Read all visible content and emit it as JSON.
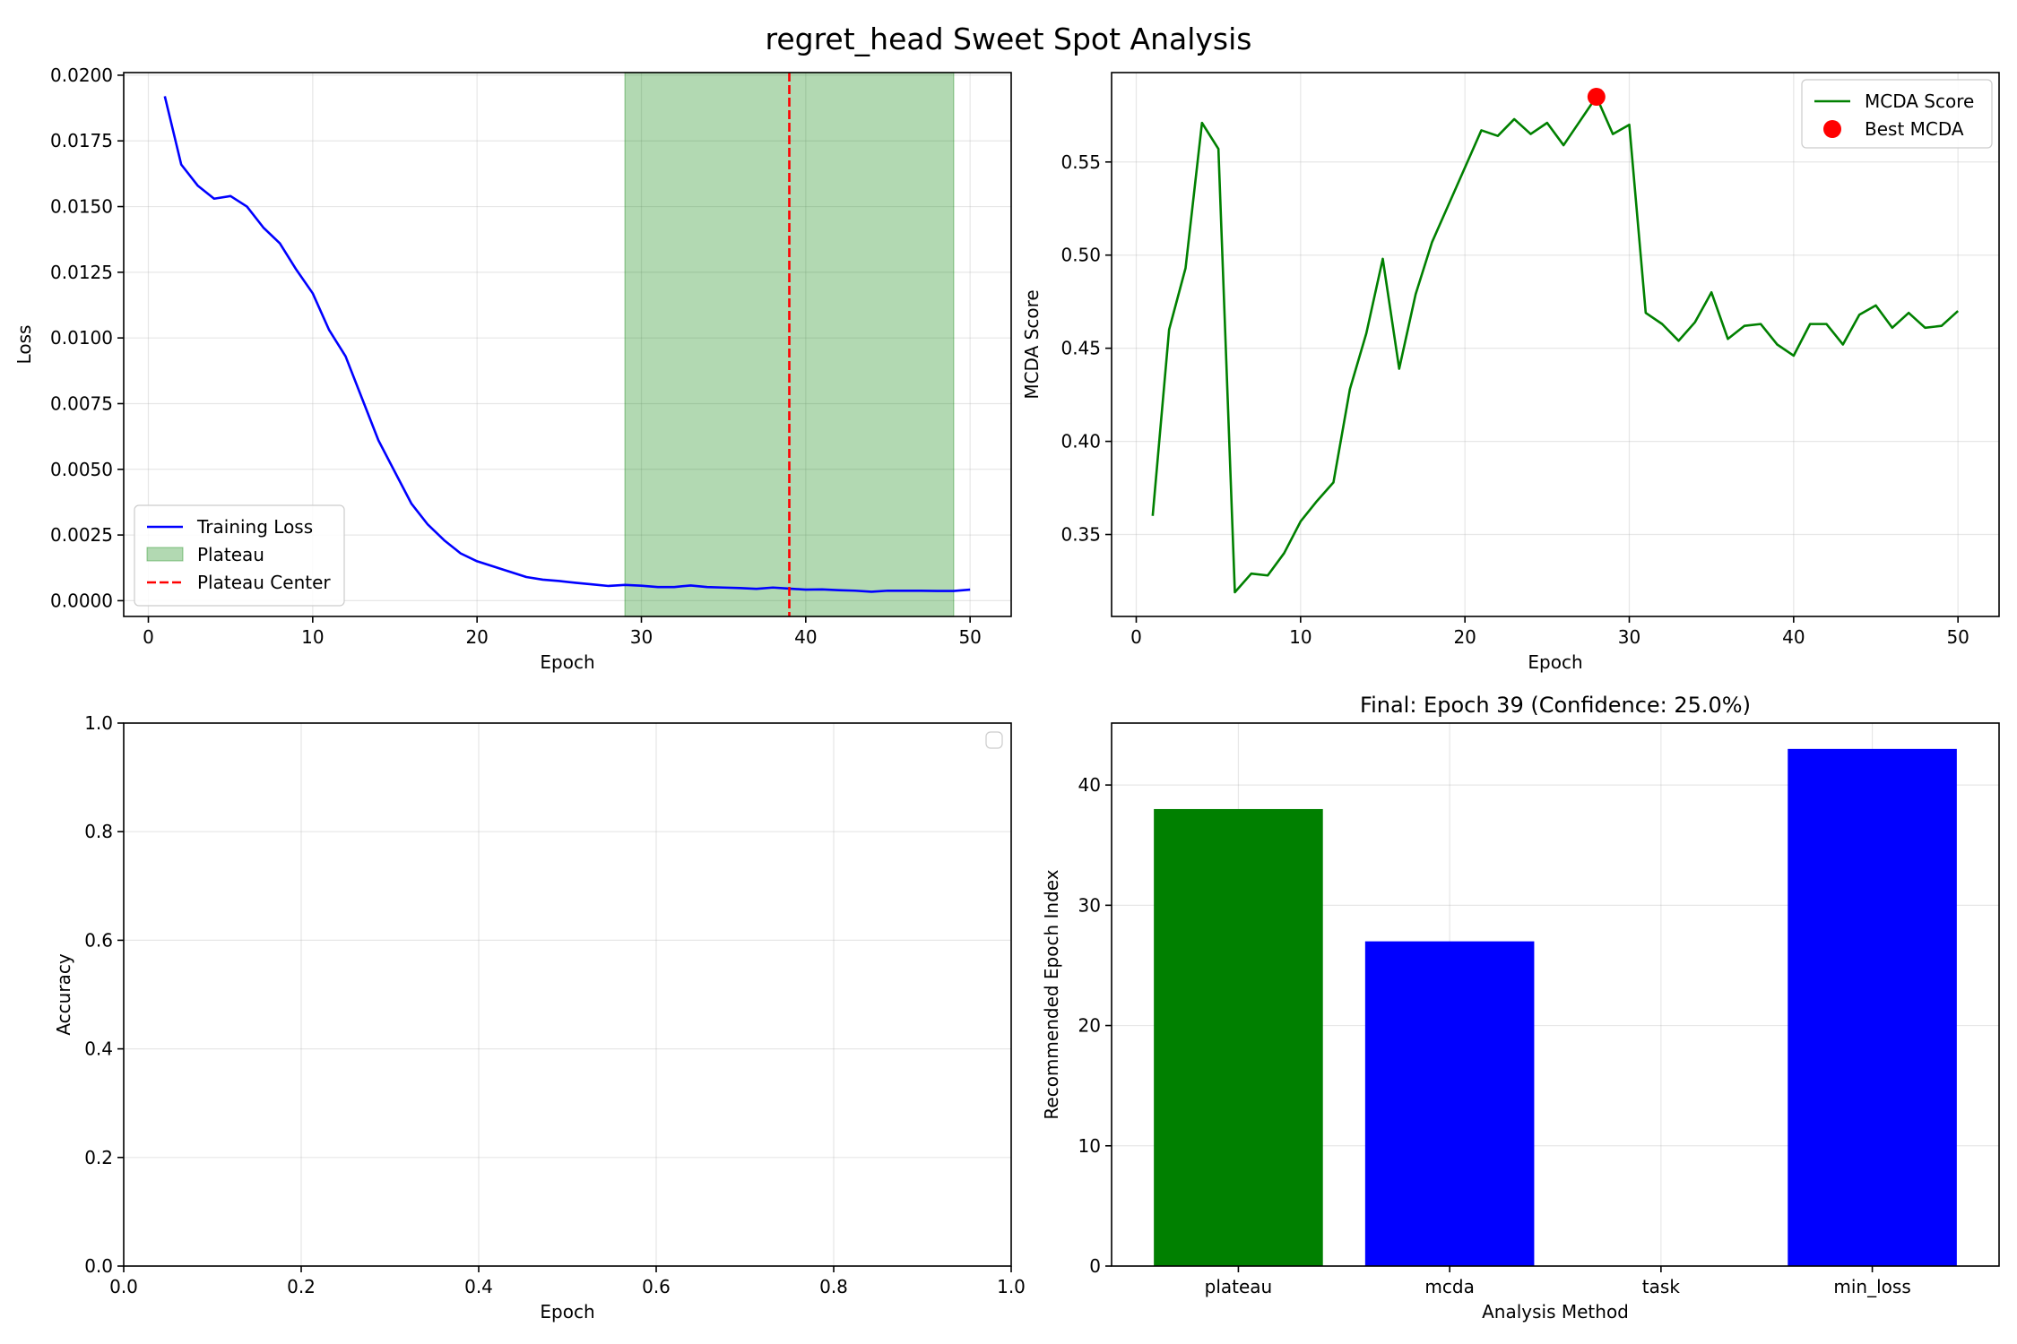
{
  "suptitle": "regret_head Sweet Spot Analysis",
  "chart_data": [
    {
      "type": "line",
      "title": "",
      "xlabel": "Epoch",
      "ylabel": "Loss",
      "xlim": [
        -1.5,
        52.5
      ],
      "ylim": [
        -0.0006,
        0.0201
      ],
      "xticks": [
        0,
        10,
        20,
        30,
        40,
        50
      ],
      "yticks": [
        0.0,
        0.0025,
        0.005,
        0.0075,
        0.01,
        0.0125,
        0.015,
        0.0175,
        0.02
      ],
      "ytick_labels": [
        "0.0000",
        "0.0025",
        "0.0050",
        "0.0075",
        "0.0100",
        "0.0125",
        "0.0150",
        "0.0175",
        "0.0200"
      ],
      "grid": true,
      "legend_position": "lower-left",
      "series": [
        {
          "name": "Training Loss",
          "color": "#0000ff",
          "x": [
            1,
            2,
            3,
            4,
            5,
            6,
            7,
            8,
            9,
            10,
            11,
            12,
            13,
            14,
            15,
            16,
            17,
            18,
            19,
            20,
            21,
            22,
            23,
            24,
            25,
            26,
            27,
            28,
            29,
            30,
            31,
            32,
            33,
            34,
            35,
            36,
            37,
            38,
            39,
            40,
            41,
            42,
            43,
            44,
            45,
            46,
            47,
            48,
            49,
            50
          ],
          "values": [
            0.0192,
            0.0166,
            0.0158,
            0.0153,
            0.0154,
            0.015,
            0.0142,
            0.0136,
            0.0126,
            0.0117,
            0.0103,
            0.0093,
            0.0077,
            0.0061,
            0.0049,
            0.0037,
            0.0029,
            0.0023,
            0.0018,
            0.0015,
            0.0013,
            0.0011,
            0.0009,
            0.0008,
            0.00075,
            0.00068,
            0.00062,
            0.00056,
            0.0006,
            0.00057,
            0.00052,
            0.00052,
            0.00058,
            0.00052,
            0.0005,
            0.00048,
            0.00045,
            0.0005,
            0.00046,
            0.00042,
            0.00043,
            0.0004,
            0.00038,
            0.00034,
            0.00038,
            0.00038,
            0.00038,
            0.00037,
            0.00037,
            0.00042
          ]
        }
      ],
      "plateau": {
        "name": "Plateau",
        "start": 29,
        "end": 49,
        "color": "#008000"
      },
      "plateau_center": {
        "name": "Plateau Center",
        "x": 39,
        "color": "#ff0000"
      }
    },
    {
      "type": "line",
      "title": "",
      "xlabel": "Epoch",
      "ylabel": "MCDA Score",
      "xlim": [
        -1.5,
        52.5
      ],
      "ylim": [
        0.306,
        0.598
      ],
      "xticks": [
        0,
        10,
        20,
        30,
        40,
        50
      ],
      "yticks": [
        0.35,
        0.4,
        0.45,
        0.5,
        0.55
      ],
      "ytick_labels": [
        "0.35",
        "0.40",
        "0.45",
        "0.50",
        "0.55"
      ],
      "grid": true,
      "legend_position": "top-right",
      "series": [
        {
          "name": "MCDA Score",
          "color": "#008000",
          "x": [
            1,
            2,
            3,
            4,
            5,
            6,
            7,
            8,
            9,
            10,
            11,
            12,
            13,
            14,
            15,
            16,
            17,
            18,
            19,
            20,
            21,
            22,
            23,
            24,
            25,
            26,
            27,
            28,
            29,
            30,
            31,
            32,
            33,
            34,
            35,
            36,
            37,
            38,
            39,
            40,
            41,
            42,
            43,
            44,
            45,
            46,
            47,
            48,
            49,
            50
          ],
          "values": [
            0.36,
            0.46,
            0.493,
            0.571,
            0.557,
            0.319,
            0.329,
            0.328,
            0.34,
            0.357,
            0.368,
            0.378,
            0.428,
            0.458,
            0.498,
            0.439,
            0.479,
            0.507,
            0.527,
            0.547,
            0.567,
            0.564,
            0.573,
            0.565,
            0.571,
            0.559,
            0.572,
            0.585,
            0.565,
            0.57,
            0.469,
            0.463,
            0.454,
            0.464,
            0.48,
            0.455,
            0.462,
            0.463,
            0.452,
            0.446,
            0.463,
            0.463,
            0.452,
            0.468,
            0.473,
            0.461,
            0.469,
            0.461,
            0.462,
            0.47
          ]
        }
      ],
      "best": {
        "name": "Best MCDA",
        "x": 28,
        "y": 0.585,
        "color": "#ff0000"
      }
    },
    {
      "type": "line",
      "title": "",
      "xlabel": "Epoch",
      "ylabel": "Accuracy",
      "xlim": [
        0,
        1
      ],
      "ylim": [
        0,
        1
      ],
      "xticks": [
        0.0,
        0.2,
        0.4,
        0.6,
        0.8,
        1.0
      ],
      "yticks": [
        0.0,
        0.2,
        0.4,
        0.6,
        0.8,
        1.0
      ],
      "xtick_labels": [
        "0.0",
        "0.2",
        "0.4",
        "0.6",
        "0.8",
        "1.0"
      ],
      "ytick_labels": [
        "0.0",
        "0.2",
        "0.4",
        "0.6",
        "0.8",
        "1.0"
      ],
      "grid": true,
      "legend_position": "top-right",
      "series": []
    },
    {
      "type": "bar",
      "title": "Final: Epoch 39 (Confidence: 25.0%)",
      "xlabel": "Analysis Method",
      "ylabel": "Recommended Epoch Index",
      "categories": [
        "plateau",
        "mcda",
        "task",
        "min_loss"
      ],
      "values": [
        38,
        27,
        0,
        43
      ],
      "colors": [
        "#008000",
        "#0000ff",
        "#0000ff",
        "#0000ff"
      ],
      "ylim": [
        0,
        45.15
      ],
      "yticks": [
        0,
        10,
        20,
        30,
        40
      ],
      "ytick_labels": [
        "0",
        "10",
        "20",
        "30",
        "40"
      ],
      "grid": true
    }
  ]
}
